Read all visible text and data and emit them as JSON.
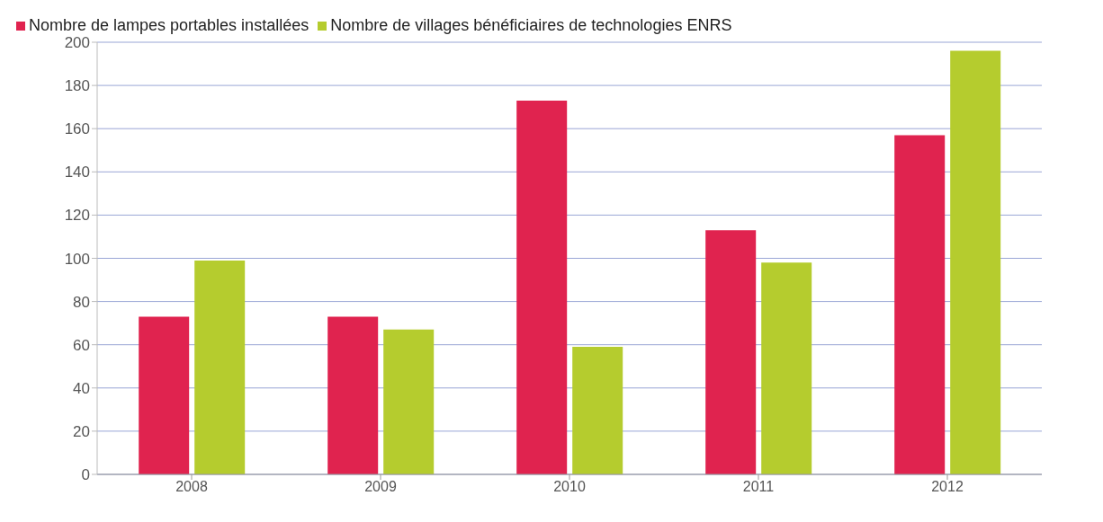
{
  "chart_data": {
    "type": "bar",
    "categories": [
      "2008",
      "2009",
      "2010",
      "2011",
      "2012"
    ],
    "series": [
      {
        "name": "Nombre de lampes portables installées",
        "color": "#e0234f",
        "values": [
          73,
          73,
          173,
          113,
          157
        ]
      },
      {
        "name": "Nombre de villages bénéficiaires de technologies ENRS",
        "color": "#b5cc2e",
        "values": [
          99,
          67,
          59,
          98,
          196
        ]
      }
    ],
    "ylim": [
      0,
      200
    ],
    "yticks": [
      0,
      20,
      40,
      60,
      80,
      100,
      120,
      140,
      160,
      180,
      200
    ],
    "grid": "y",
    "legend": "top left"
  }
}
